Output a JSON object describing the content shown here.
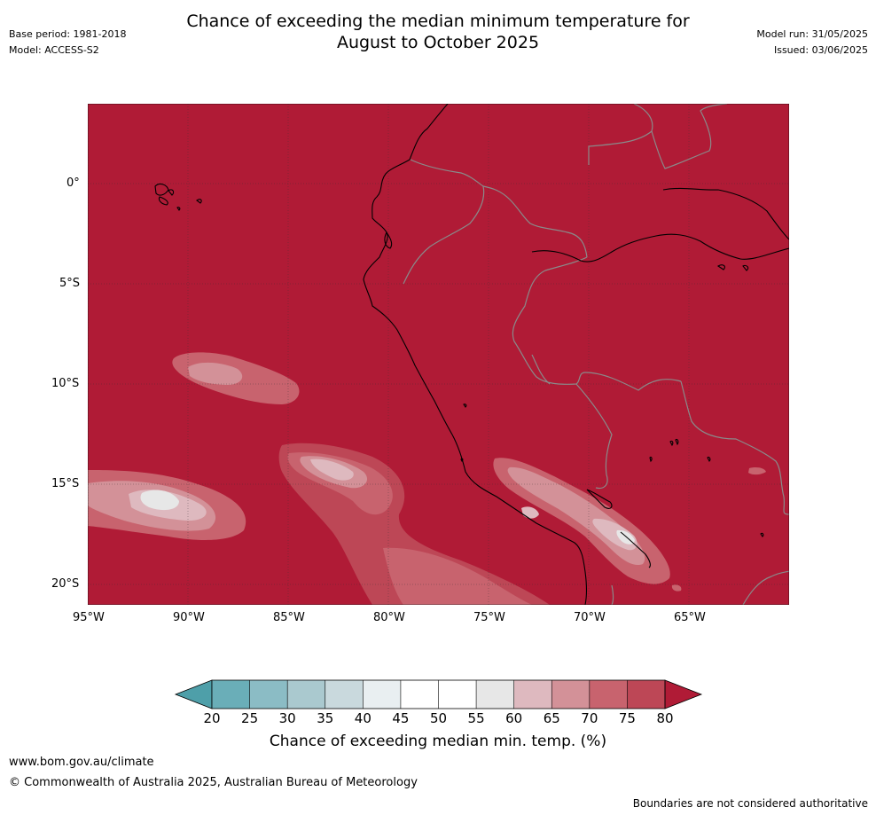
{
  "header": {
    "title_line1": "Chance of exceeding the median minimum temperature for",
    "title_line2": "August to October 2025",
    "base_period": "Base period: 1981-2018",
    "model": "Model: ACCESS-S2",
    "model_run": "Model run: 31/05/2025",
    "issued": "Issued: 03/06/2025"
  },
  "map": {
    "lat_labels": [
      "0°",
      "5°S",
      "10°S",
      "15°S",
      "20°S"
    ],
    "lon_labels": [
      "95°W",
      "90°W",
      "85°W",
      "80°W",
      "75°W",
      "70°W",
      "65°W"
    ],
    "background_color": "#b01b36"
  },
  "colorbar": {
    "tick_labels": [
      "20",
      "25",
      "30",
      "35",
      "40",
      "45",
      "50",
      "55",
      "60",
      "65",
      "70",
      "75",
      "80"
    ],
    "colors": [
      "#4e9fa9",
      "#6aaeb8",
      "#8bbcc5",
      "#aac9cf",
      "#c9d9dd",
      "#e9eff1",
      "#ffffff",
      "#ffffff",
      "#e7e7e7",
      "#deb9bf",
      "#d39198",
      "#c8636e",
      "#bd4756",
      "#b01b36"
    ],
    "label": "Chance of exceeding median min. temp. (%)"
  },
  "footer": {
    "url": "www.bom.gov.au/climate",
    "copyright": "© Commonwealth of Australia 2025, Australian Bureau of Meteorology",
    "disclaimer": "Boundaries are not considered authoritative"
  }
}
